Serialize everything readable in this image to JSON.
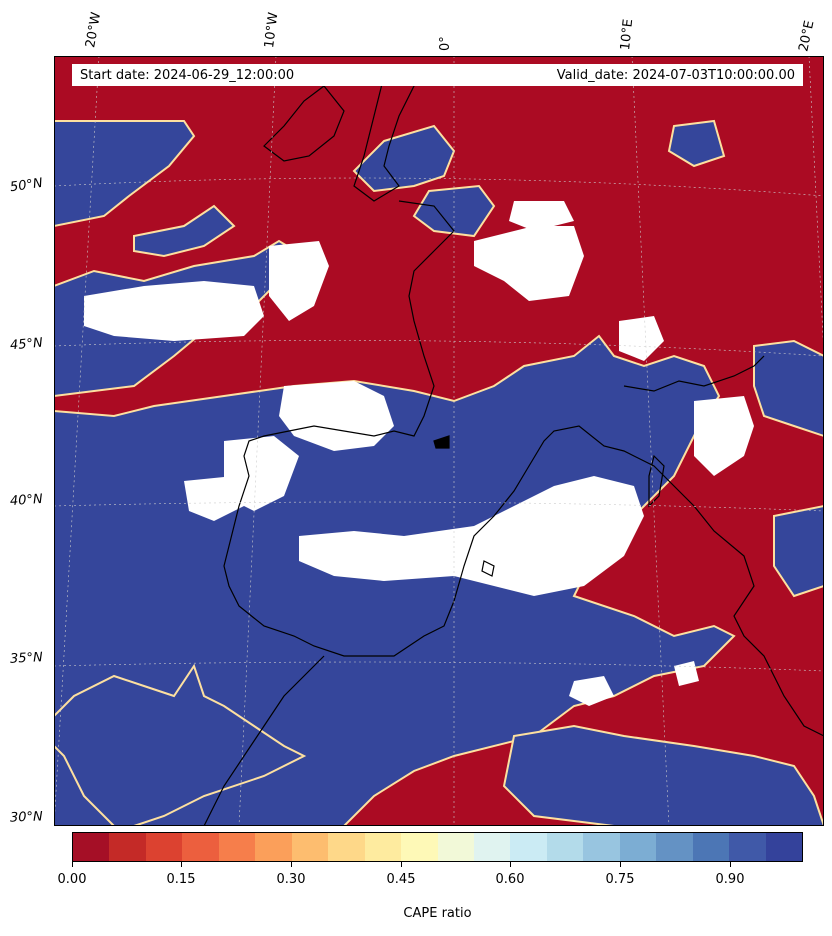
{
  "header": {
    "start_date": "Start date: 2024-06-29_12:00:00",
    "valid_date": "Valid_date: 2024-07-03T10:00:00.00"
  },
  "longitude_labels": [
    "20°W",
    "10°W",
    "0°",
    "10°E",
    "20°E"
  ],
  "latitude_labels": [
    "50°N",
    "45°N",
    "40°N",
    "35°N",
    "30°N"
  ],
  "colorbar": {
    "title": "CAPE ratio",
    "tick_labels": [
      "0.00",
      "0.15",
      "0.30",
      "0.45",
      "0.60",
      "0.75",
      "0.90"
    ],
    "colors": [
      "#a50f26",
      "#c42a27",
      "#dc4230",
      "#ec5f3e",
      "#f67e4b",
      "#fb9f5a",
      "#fdbd6f",
      "#fed889",
      "#feeb9f",
      "#fef9b7",
      "#f2f9d8",
      "#e0f3f0",
      "#cbebf4",
      "#b3dbea",
      "#98c5e0",
      "#7cadd3",
      "#6492c4",
      "#4c76b5",
      "#4059a8",
      "#34429b"
    ],
    "range": [
      0,
      1
    ]
  },
  "colors": {
    "low_ratio": "#ab0b23",
    "high_ratio": "#35469b",
    "no_data": "#ffffff",
    "coastline": "#000000"
  }
}
